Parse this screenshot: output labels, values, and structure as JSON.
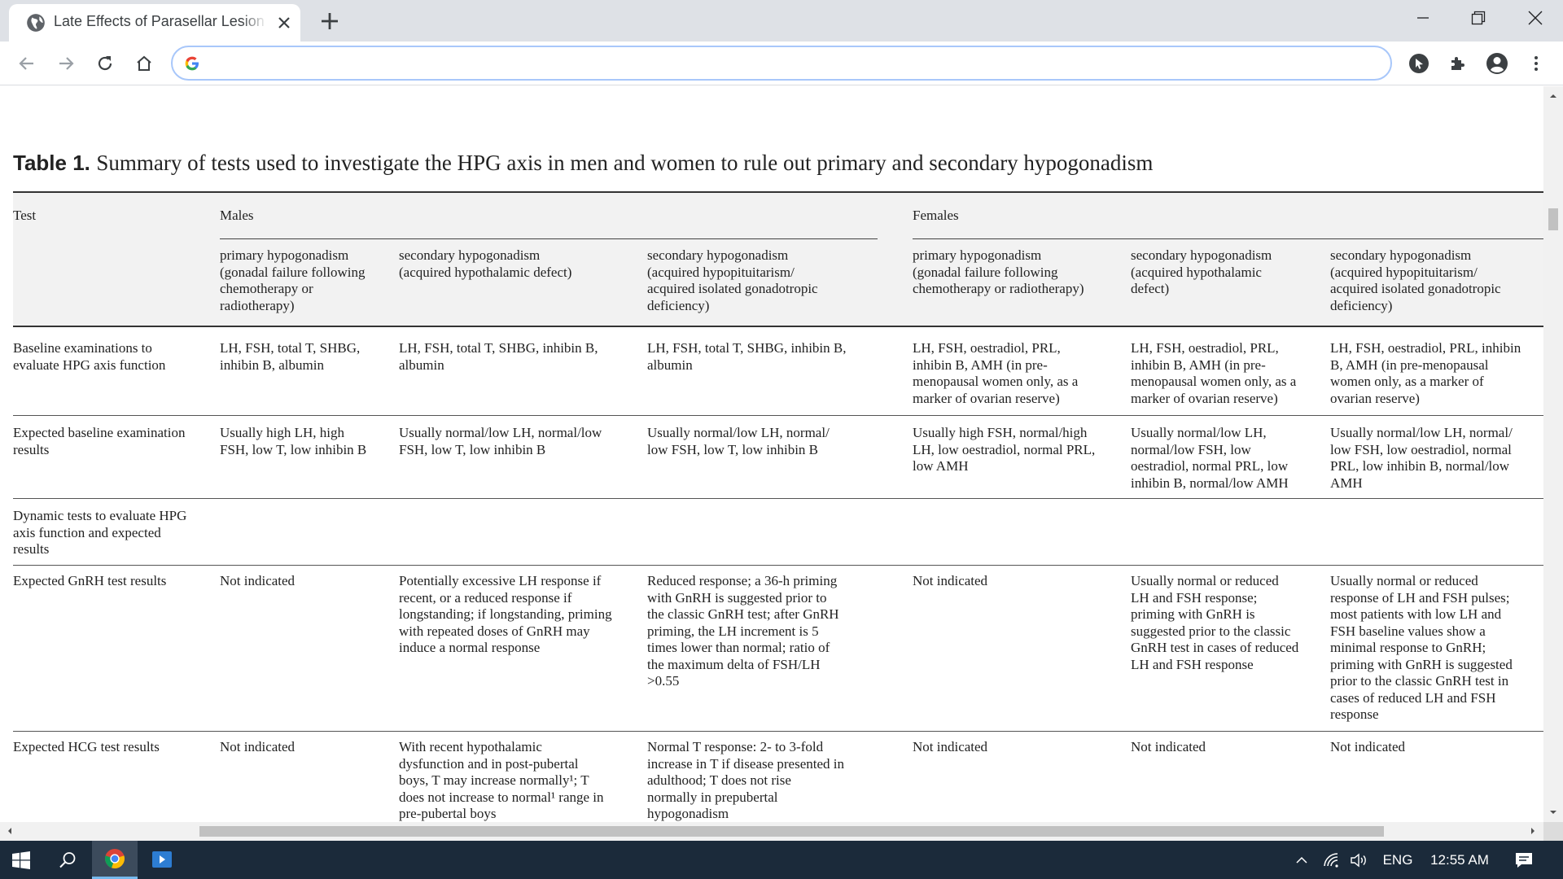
{
  "browser": {
    "tab_title": "Late Effects of Parasellar Lesion Treatment",
    "address_value": "",
    "icons": [
      "globe-icon",
      "close-icon",
      "plus-icon",
      "minimize-icon",
      "restore-icon",
      "close-window-icon",
      "back-icon",
      "forward-icon",
      "reload-icon",
      "home-icon",
      "google-icon",
      "cursor-extension-icon",
      "puzzle-icon",
      "profile-icon",
      "menu-icon"
    ]
  },
  "caption": {
    "label": "Table 1.",
    "text": "Summary of tests used to investigate the HPG axis in men and women to rule out primary and secondary hypogonadism"
  },
  "table": {
    "headers": {
      "test": "Test",
      "males": "Males",
      "females": "Females",
      "sub": [
        [
          "primary hypogonadism",
          "(gonadal failure following",
          "chemotherapy or",
          "radiotherapy)"
        ],
        [
          "secondary hypogonadism",
          "(acquired hypothalamic defect)"
        ],
        [
          "secondary hypogonadism",
          "(acquired hypopituitarism/",
          "acquired isolated gonadotropic",
          "deficiency)"
        ],
        [
          "primary hypogonadism",
          "(gonadal failure following",
          "chemotherapy or radiotherapy)"
        ],
        [
          "secondary hypogonadism",
          "(acquired hypothalamic",
          "defect)"
        ],
        [
          "secondary hypogonadism",
          "(acquired hypopituitarism/",
          "acquired isolated gonadotropic",
          "deficiency)"
        ]
      ]
    },
    "rows": [
      {
        "label": [
          "Baseline examinations to",
          "evaluate HPG axis function"
        ],
        "cells": [
          [
            "LH, FSH, total T, SHBG,",
            "inhibin B, albumin"
          ],
          [
            "LH, FSH, total T, SHBG, inhibin B,",
            "albumin"
          ],
          [
            "LH, FSH, total T, SHBG, inhibin B,",
            "albumin"
          ],
          [
            "LH, FSH, oestradiol, PRL,",
            "inhibin B, AMH (in pre-",
            "menopausal women only, as a",
            "marker of ovarian reserve)"
          ],
          [
            "LH, FSH, oestradiol, PRL,",
            "inhibin B, AMH (in pre-",
            "menopausal women only, as a",
            "marker of ovarian reserve)"
          ],
          [
            "LH, FSH, oestradiol, PRL, inhibin",
            "B, AMH (in pre-menopausal",
            "women only, as a marker of",
            "ovarian reserve)"
          ]
        ]
      },
      {
        "label": [
          "Expected baseline examination",
          "results"
        ],
        "cells": [
          [
            "Usually high LH, high",
            "FSH, low T, low inhibin B"
          ],
          [
            "Usually normal/low LH, normal/low",
            "FSH, low T, low inhibin B"
          ],
          [
            "Usually normal/low LH, normal/",
            "low FSH, low T, low inhibin B"
          ],
          [
            "Usually high FSH, normal/high",
            "LH, low oestradiol, normal PRL,",
            "low AMH"
          ],
          [
            "Usually normal/low LH,",
            "normal/low FSH, low",
            "oestradiol, normal PRL, low",
            "inhibin B, normal/low AMH"
          ],
          [
            "Usually normal/low LH, normal/",
            "low FSH, low oestradiol, normal",
            "PRL, low inhibin B, normal/low",
            "AMH"
          ]
        ]
      },
      {
        "label": [
          "Dynamic tests to evaluate HPG",
          "axis function and expected",
          "results"
        ],
        "cells": [
          [],
          [],
          [],
          [],
          [],
          []
        ]
      },
      {
        "label": [
          "Expected GnRH test results"
        ],
        "cells": [
          [
            "Not indicated"
          ],
          [
            "Potentially excessive LH response if",
            "recent, or a reduced response if",
            "longstanding; if longstanding, priming",
            "with repeated doses of GnRH may",
            "induce a normal response"
          ],
          [
            "Reduced response; a 36-h priming",
            "with GnRH is suggested prior to",
            "the classic GnRH test; after GnRH",
            "priming, the LH increment is 5",
            "times lower than normal; ratio of",
            "the maximum delta of FSH/LH",
            ">0.55"
          ],
          [
            "Not indicated"
          ],
          [
            "Usually normal or reduced",
            "LH and FSH response;",
            "priming with GnRH is",
            "suggested prior to the classic",
            "GnRH test in cases of reduced",
            "LH and FSH response"
          ],
          [
            "Usually normal or reduced",
            "response of LH and FSH pulses;",
            "most patients with low LH and",
            "FSH baseline values show a",
            "minimal response to GnRH;",
            "priming with GnRH is suggested",
            "prior to the classic GnRH test in",
            "cases of reduced LH and FSH",
            "response"
          ]
        ]
      },
      {
        "label": [
          "Expected HCG test results"
        ],
        "cells": [
          [
            "Not indicated"
          ],
          [
            "With recent hypothalamic",
            "dysfunction and in post-pubertal",
            "boys, T may increase normally¹; T",
            "does not increase to normal¹ range in",
            "pre-pubertal boys"
          ],
          [
            "Normal T response: 2- to 3-fold",
            "increase in T if disease presented in",
            "adulthood; T does not rise",
            "normally in prepubertal",
            "hypogonadism"
          ],
          [
            "Not indicated"
          ],
          [
            "Not indicated"
          ],
          [
            "Not indicated"
          ]
        ]
      }
    ]
  },
  "taskbar": {
    "icons": [
      "windows-start-icon",
      "search-icon",
      "chrome-icon",
      "media-app-icon",
      "chevron-up-icon",
      "wifi-icon",
      "volume-icon",
      "notification-icon"
    ],
    "language": "ENG",
    "time": "12:55 AM"
  }
}
